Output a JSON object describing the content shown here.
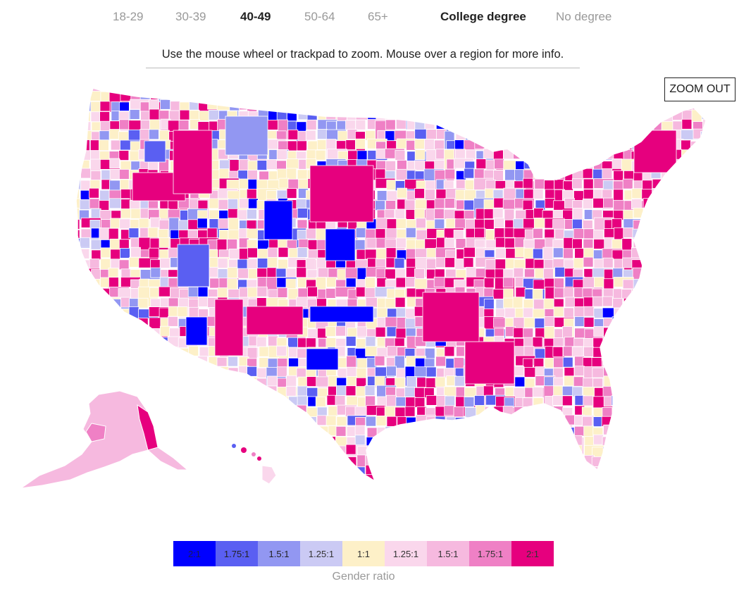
{
  "filters": [
    {
      "label": "18-29",
      "active": false
    },
    {
      "label": "30-39",
      "active": false
    },
    {
      "label": "40-49",
      "active": true
    },
    {
      "label": "50-64",
      "active": false
    },
    {
      "label": "65+",
      "active": false
    },
    {
      "label": "College degree",
      "active": true
    },
    {
      "label": "No degree",
      "active": false
    }
  ],
  "instructions": "Use the mouse wheel or trackpad to zoom. Mouse over a region for more info.",
  "zoom_out_label": "ZOOM OUT",
  "legend": {
    "caption": "Gender ratio",
    "items": [
      {
        "label": "2:1",
        "color": "#0000ff",
        "text_color": "#1a1a55"
      },
      {
        "label": "1.75:1",
        "color": "#5a5ff2",
        "text_color": "#222222"
      },
      {
        "label": "1.5:1",
        "color": "#9297f2",
        "text_color": "#222222"
      },
      {
        "label": "1.25:1",
        "color": "#cbcaf4",
        "text_color": "#333333"
      },
      {
        "label": "1:1",
        "color": "#fdf0c8",
        "text_color": "#333333"
      },
      {
        "label": "1.25:1",
        "color": "#fad7ec",
        "text_color": "#333333"
      },
      {
        "label": "1.5:1",
        "color": "#f6b9df",
        "text_color": "#333333"
      },
      {
        "label": "1.75:1",
        "color": "#ef80c5",
        "text_color": "#333333"
      },
      {
        "label": "2:1",
        "color": "#e6007e",
        "text_color": "#333333"
      }
    ]
  },
  "map": {
    "subject": "United States regions colored by gender ratio",
    "palette": [
      "#0000ff",
      "#5a5ff2",
      "#9297f2",
      "#cbcaf4",
      "#fdf0c8",
      "#fad7ec",
      "#f6b9df",
      "#ef80c5",
      "#e6007e"
    ],
    "border_color": "#ffffff",
    "no_data_color": "#d5d5d5"
  }
}
